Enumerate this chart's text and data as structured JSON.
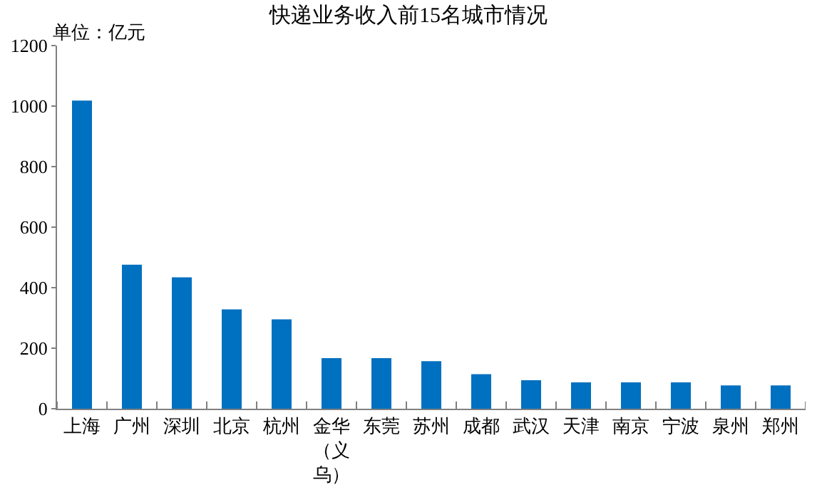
{
  "chart_data": {
    "type": "bar",
    "title": "快递业务收入前15名城市情况",
    "ylabel": "单位：亿元",
    "categories": [
      "上海",
      "广州",
      "深圳",
      "北京",
      "杭州",
      "金华（义乌）",
      "东莞",
      "苏州",
      "成都",
      "武汉",
      "天津",
      "南京",
      "宁波",
      "泉州",
      "郑州"
    ],
    "values": [
      1018,
      476,
      434,
      328,
      295,
      167,
      167,
      157,
      114,
      94,
      87,
      87,
      87,
      77,
      77
    ],
    "color": "#0070c0",
    "ylim": [
      0,
      1200
    ],
    "yticks": [
      0,
      200,
      400,
      600,
      800,
      1000,
      1200
    ],
    "grid": false
  }
}
